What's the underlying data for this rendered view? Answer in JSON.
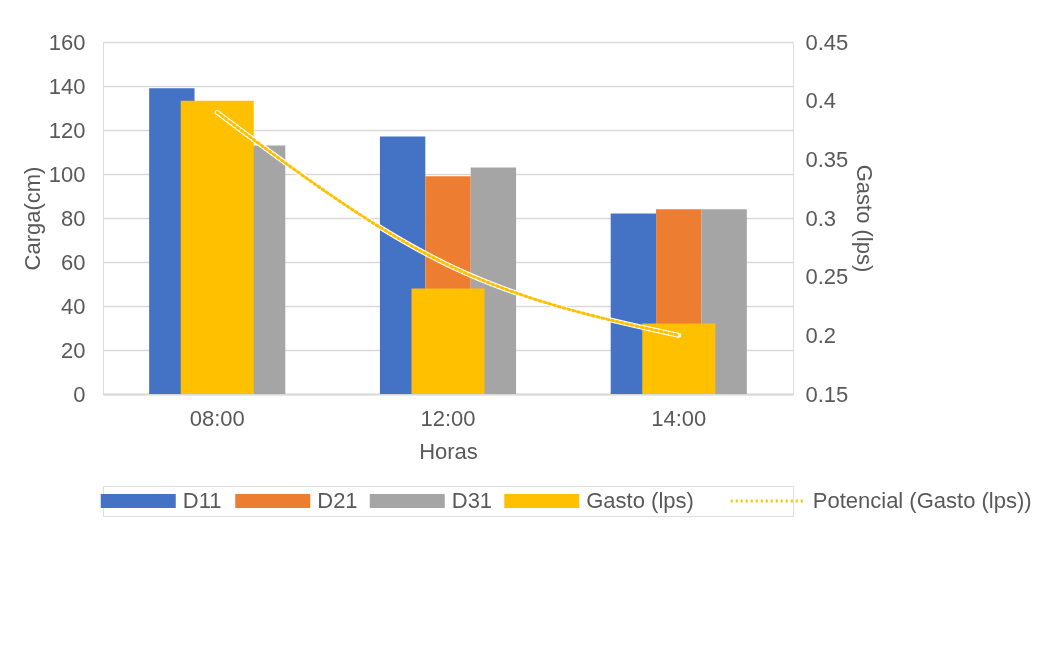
{
  "chart_data": {
    "type": "bar",
    "categories": [
      "08:00",
      "12:00",
      "14:00"
    ],
    "xlabel": "Horas",
    "ylabel": "Carga(cm)",
    "y2label": "Gasto (lps)",
    "ylim": [
      0,
      160
    ],
    "yticks": [
      0,
      20,
      40,
      60,
      80,
      100,
      120,
      140,
      160
    ],
    "y2lim": [
      0.15,
      0.45
    ],
    "y2ticks": [
      0.15,
      0.2,
      0.25,
      0.3,
      0.35,
      0.4,
      0.45
    ],
    "grid": "y",
    "legend": "bottom",
    "series": [
      {
        "name": "D11",
        "color": "#4472c4",
        "values": [
          139,
          117,
          82
        ]
      },
      {
        "name": "D21",
        "color": "#ed7d31",
        "values": [
          null,
          99,
          84
        ]
      },
      {
        "name": "D31",
        "color": "#a5a5a5",
        "values": [
          113,
          103,
          84
        ]
      },
      {
        "name": "Gasto (lps)",
        "color": "#ffc000",
        "axis": "y2",
        "values": [
          0.4,
          0.24,
          0.21
        ]
      },
      {
        "name": "Potencial (Gasto (lps))",
        "color": "#ffc000",
        "type": "line",
        "line_style": "dotted",
        "axis": "y2",
        "values": [
          0.39,
          0.26,
          0.2
        ]
      }
    ]
  }
}
